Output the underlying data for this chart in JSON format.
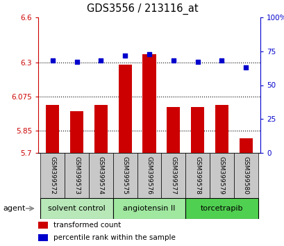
{
  "title": "GDS3556 / 213116_at",
  "samples": [
    "GSM399572",
    "GSM399573",
    "GSM399574",
    "GSM399575",
    "GSM399576",
    "GSM399577",
    "GSM399578",
    "GSM399579",
    "GSM399580"
  ],
  "red_values": [
    6.02,
    5.975,
    6.02,
    6.285,
    6.355,
    6.005,
    6.005,
    6.02,
    5.795
  ],
  "blue_values": [
    68,
    67,
    68,
    72,
    73,
    68,
    67,
    68,
    63
  ],
  "ylim_left": [
    5.7,
    6.6
  ],
  "ylim_right": [
    0,
    100
  ],
  "yticks_left": [
    5.7,
    5.85,
    6.075,
    6.3,
    6.6
  ],
  "yticks_right": [
    0,
    25,
    50,
    75,
    100
  ],
  "grid_lines": [
    5.85,
    6.075,
    6.3
  ],
  "groups": [
    {
      "label": "solvent control",
      "samples": [
        0,
        1,
        2
      ],
      "color": "#b8e8b8"
    },
    {
      "label": "angiotensin II",
      "samples": [
        3,
        4,
        5
      ],
      "color": "#a0e8a0"
    },
    {
      "label": "torcetrapib",
      "samples": [
        6,
        7,
        8
      ],
      "color": "#50d050"
    }
  ],
  "bar_color": "#cc0000",
  "dot_color": "#0000cc",
  "bar_width": 0.55,
  "legend_items": [
    {
      "label": "transformed count",
      "color": "#cc0000"
    },
    {
      "label": "percentile rank within the sample",
      "color": "#0000cc"
    }
  ],
  "agent_label": "agent",
  "background_color": "#ffffff",
  "label_area_color": "#c8c8c8",
  "left_axis_color": "#cc0000",
  "right_axis_color": "#0000cc"
}
